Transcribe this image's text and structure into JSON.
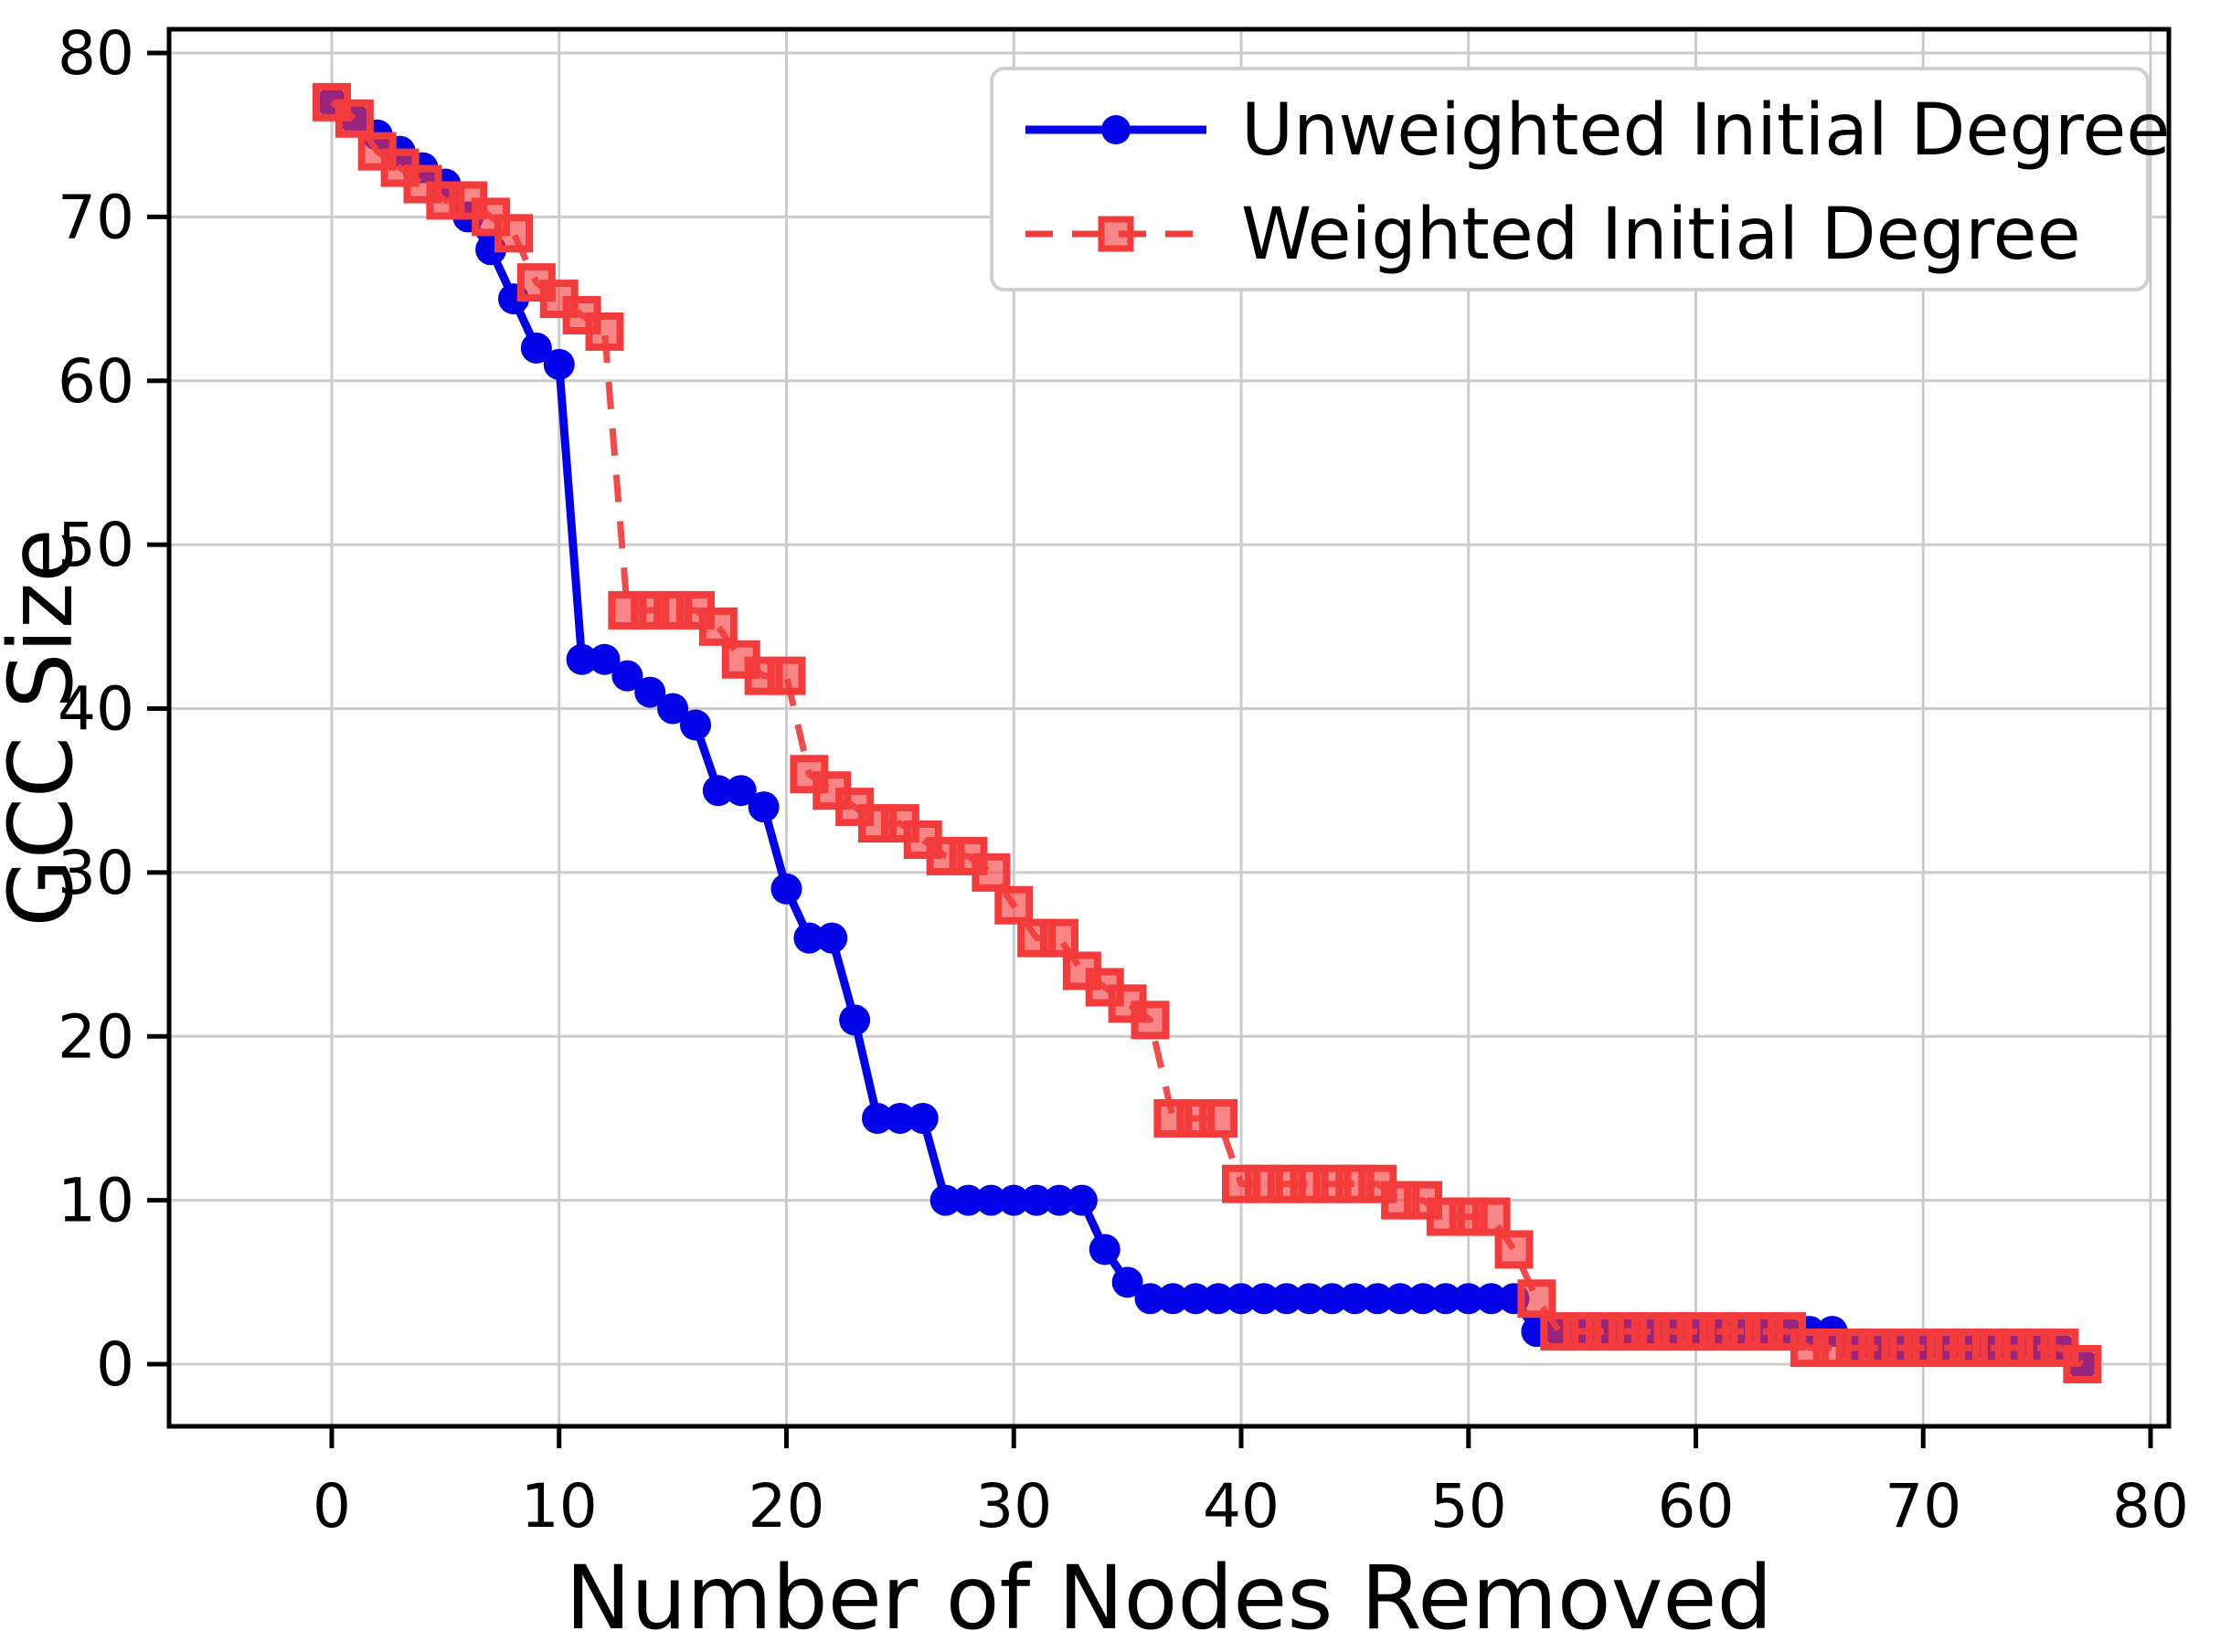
{
  "chart_data": {
    "type": "line",
    "title": "",
    "xlabel": "Number of Nodes Removed",
    "ylabel": "GCC Size",
    "x_ticks": [
      0,
      10,
      20,
      30,
      40,
      50,
      60,
      70,
      80
    ],
    "y_ticks": [
      0,
      10,
      20,
      30,
      40,
      50,
      60,
      70,
      80
    ],
    "xlim": [
      -7.2,
      80.8
    ],
    "ylim": [
      -3.8,
      81.4
    ],
    "grid": true,
    "grid_color": "#cccccc",
    "legend_position": "upper right",
    "series": [
      {
        "name": "Unweighted Initial Degree",
        "color": "#0202e8",
        "line_style": "solid",
        "marker": "circle",
        "x": [
          0,
          1,
          2,
          3,
          4,
          5,
          6,
          7,
          8,
          9,
          10,
          11,
          12,
          13,
          14,
          15,
          16,
          17,
          18,
          19,
          20,
          21,
          22,
          23,
          24,
          25,
          26,
          27,
          28,
          29,
          30,
          31,
          32,
          33,
          34,
          35,
          36,
          37,
          38,
          39,
          40,
          41,
          42,
          43,
          44,
          45,
          46,
          47,
          48,
          49,
          50,
          51,
          52,
          53,
          54,
          55,
          56,
          57,
          58,
          59,
          60,
          61,
          62,
          63,
          64,
          65,
          66,
          67,
          68,
          69,
          70,
          71,
          72,
          73,
          74,
          75,
          76,
          77
        ],
        "y": [
          77,
          76,
          75,
          74,
          73,
          72,
          70,
          68,
          65,
          62,
          61,
          43,
          43,
          42,
          41,
          40,
          39,
          35,
          35,
          34,
          29,
          26,
          26,
          21,
          15,
          15,
          15,
          10,
          10,
          10,
          10,
          10,
          10,
          10,
          7,
          5,
          4,
          4,
          4,
          4,
          4,
          4,
          4,
          4,
          4,
          4,
          4,
          4,
          4,
          4,
          4,
          4,
          4,
          2,
          2,
          2,
          2,
          2,
          2,
          2,
          2,
          2,
          2,
          2,
          2,
          2,
          2,
          1,
          1,
          1,
          1,
          1,
          1,
          1,
          1,
          1,
          1,
          0
        ]
      },
      {
        "name": "Weighted Initial Degree",
        "color": "#f43b3b",
        "line_style": "dashed",
        "marker": "square",
        "x": [
          0,
          1,
          2,
          3,
          4,
          5,
          6,
          7,
          8,
          9,
          10,
          11,
          12,
          13,
          14,
          15,
          16,
          17,
          18,
          19,
          20,
          21,
          22,
          23,
          24,
          25,
          26,
          27,
          28,
          29,
          30,
          31,
          32,
          33,
          34,
          35,
          36,
          37,
          38,
          39,
          40,
          41,
          42,
          43,
          44,
          45,
          46,
          47,
          48,
          49,
          50,
          51,
          52,
          53,
          54,
          55,
          56,
          57,
          58,
          59,
          60,
          61,
          62,
          63,
          64,
          65,
          66,
          67,
          68,
          69,
          70,
          71,
          72,
          73,
          74,
          75,
          76,
          77
        ],
        "y": [
          77,
          76,
          74,
          73,
          72,
          71,
          71,
          70,
          69,
          66,
          65,
          64,
          63,
          46,
          46,
          46,
          46,
          45,
          43,
          42,
          42,
          36,
          35,
          34,
          33,
          33,
          32,
          31,
          31,
          30,
          28,
          26,
          26,
          24,
          23,
          22,
          21,
          15,
          15,
          15,
          11,
          11,
          11,
          11,
          11,
          11,
          11,
          10,
          10,
          9,
          9,
          9,
          7,
          4,
          2,
          2,
          2,
          2,
          2,
          2,
          2,
          2,
          2,
          2,
          2,
          1,
          1,
          1,
          1,
          1,
          1,
          1,
          1,
          1,
          1,
          1,
          1,
          0
        ]
      }
    ]
  }
}
